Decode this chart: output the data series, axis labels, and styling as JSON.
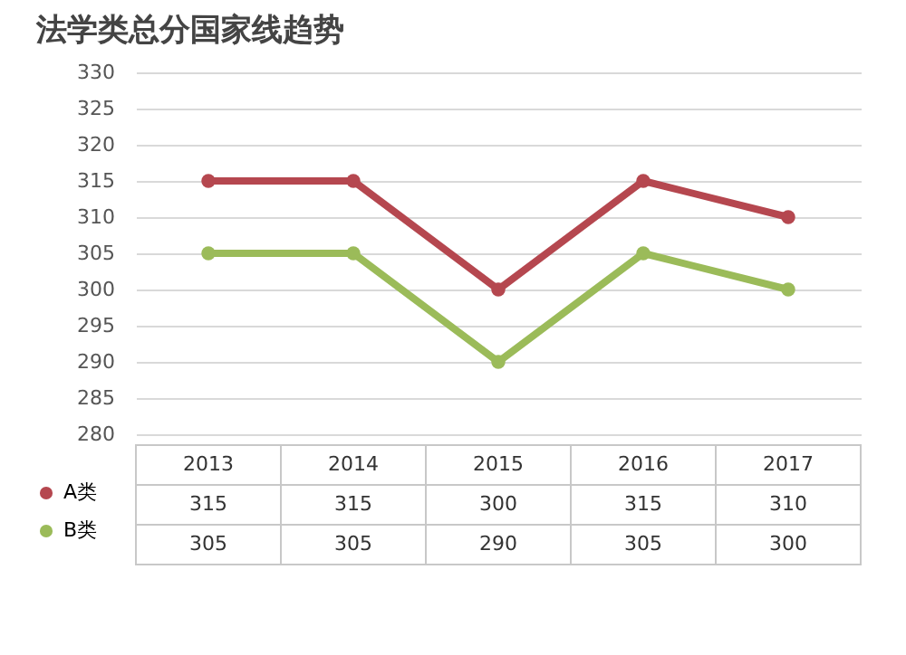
{
  "chart_data": {
    "type": "line",
    "title": "法学类总分国家线趋势",
    "categories": [
      "2013",
      "2014",
      "2015",
      "2016",
      "2017"
    ],
    "series": [
      {
        "name": "A类",
        "color": "#b5474f",
        "values": [
          315,
          315,
          300,
          315,
          310
        ]
      },
      {
        "name": "B类",
        "color": "#9bbb59",
        "values": [
          305,
          305,
          290,
          305,
          300
        ]
      }
    ],
    "ylim": [
      280,
      330
    ],
    "yticks": [
      280,
      285,
      290,
      295,
      300,
      305,
      310,
      315,
      320,
      325,
      330
    ],
    "grid": "y",
    "marker": "circle",
    "line_style": "solid",
    "legend": "bottom left",
    "data_labels": true
  }
}
